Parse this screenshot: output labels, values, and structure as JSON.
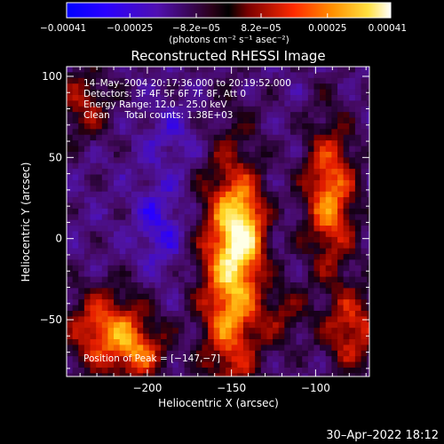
{
  "chart_data": {
    "type": "heatmap",
    "title": "Reconstructed RHESSI Image",
    "xlabel": "Heliocentric X (arcsec)",
    "ylabel": "Heliocentric Y (arcsec)",
    "xlim": [
      -248,
      -68
    ],
    "ylim": [
      -85,
      106
    ],
    "xticks": [
      -200,
      -150,
      -100
    ],
    "yticks": [
      -50,
      0,
      50,
      100
    ],
    "xtick_labels": [
      "−200",
      "−150",
      "−100"
    ],
    "ytick_labels": [
      "−50",
      "0",
      "50",
      "100"
    ],
    "colorbar": {
      "range": [
        -0.00041,
        0.00041
      ],
      "ticks": [
        -0.00041,
        -0.00025,
        -8.2e-05,
        8.2e-05,
        0.00025,
        0.00041
      ],
      "tick_labels": [
        "−0.00041",
        "−0.00025",
        "−8.2e−05",
        "8.2e−05",
        "0.00025",
        "0.00041"
      ],
      "unit_label": "(photons cm⁻² s⁻¹ asec⁻²)"
    },
    "annotations": [
      "14–May–2004 20:17:36.000 to 20:19:52.000",
      "Detectors: 3F 4F 5F 6F 7F 8F, Att 0",
      "Energy Range: 12.0 – 25.0 keV",
      "Clean     Total counts: 1.38E+03"
    ],
    "peak_label": "Position of Peak = [−147,−7]",
    "peak": [
      -147,
      -7
    ],
    "sources": [
      {
        "x": -152,
        "y": -20,
        "sx": 13,
        "sy": 55,
        "amp": 1.0
      },
      {
        "x": -144,
        "y": 8,
        "sx": 9,
        "sy": 18,
        "amp": 0.55
      },
      {
        "x": -225,
        "y": -55,
        "sx": 17,
        "sy": 18,
        "amp": 0.82
      },
      {
        "x": -205,
        "y": -70,
        "sx": 11,
        "sy": 12,
        "amp": 0.5
      },
      {
        "x": -93,
        "y": 28,
        "sx": 11,
        "sy": 32,
        "amp": 0.85
      },
      {
        "x": -80,
        "y": -55,
        "sx": 12,
        "sy": 18,
        "amp": 0.65
      },
      {
        "x": -240,
        "y": 85,
        "sx": 12,
        "sy": 16,
        "amp": 0.5
      },
      {
        "x": -120,
        "y": -45,
        "sx": 10,
        "sy": 14,
        "amp": 0.35
      },
      {
        "x": -195,
        "y": 10,
        "sx": 10,
        "sy": 20,
        "amp": -0.35
      },
      {
        "x": -185,
        "y": 65,
        "sx": 14,
        "sy": 14,
        "amp": -0.2
      }
    ]
  },
  "footer": {
    "timestamp": "30–Apr–2022 18:12"
  }
}
